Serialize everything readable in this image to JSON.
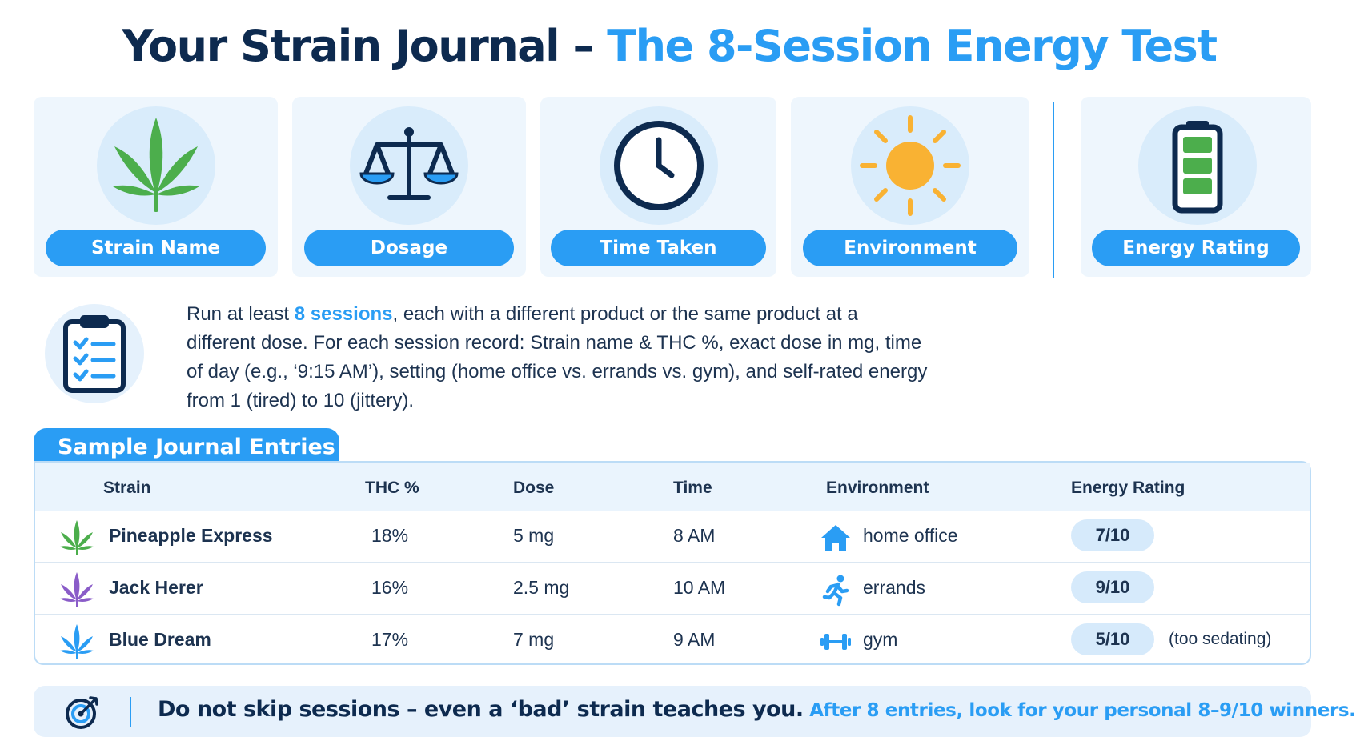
{
  "title": {
    "part1": "Your Strain Journal – ",
    "part2": "The 8-Session Energy Test"
  },
  "cards": [
    {
      "label": "Strain Name",
      "icon": "cannabis-leaf-icon"
    },
    {
      "label": "Dosage",
      "icon": "balance-scale-icon"
    },
    {
      "label": "Time Taken",
      "icon": "clock-icon"
    },
    {
      "label": "Environment",
      "icon": "sun-icon"
    },
    {
      "label": "Energy Rating",
      "icon": "battery-icon"
    }
  ],
  "instructions": {
    "icon": "clipboard-checklist-icon",
    "lead": "Run at least ",
    "highlight": "8 sessions",
    "rest": ", each with a different product or the same product at a different dose. For each session record: Strain name & THC %, exact dose in mg, time of day (e.g., ‘9:15 AM’), setting (home office vs. errands vs. gym), and self-rated energy from 1 (tired) to 10 (jittery)."
  },
  "table": {
    "tab_label": "Sample Journal Entries",
    "headers": {
      "strain": "Strain",
      "thc": "THC %",
      "dose": "Dose",
      "time": "Time",
      "environment": "Environment",
      "energy": "Energy Rating"
    },
    "rows": [
      {
        "strain": "Pineapple Express",
        "leaf_color": "#4cae4c",
        "thc": "18%",
        "dose": "5 mg",
        "time": "8 AM",
        "env_icon": "house-icon",
        "environment": "home office",
        "energy": "7/10",
        "note": ""
      },
      {
        "strain": "Jack Herer",
        "leaf_color": "#8a5cc8",
        "thc": "16%",
        "dose": "2.5 mg",
        "time": "10 AM",
        "env_icon": "running-person-icon",
        "environment": "errands",
        "energy": "9/10",
        "note": ""
      },
      {
        "strain": "Blue Dream",
        "leaf_color": "#2a9df4",
        "thc": "17%",
        "dose": "7 mg",
        "time": "9 AM",
        "env_icon": "dumbbell-icon",
        "environment": "gym",
        "energy": "5/10",
        "note": "(too sedating)"
      }
    ]
  },
  "footer": {
    "icon": "target-icon",
    "text1": "Do not skip sessions – even a ‘bad’ strain teaches you.",
    "text2": " After 8 entries, look for your personal 8–9/10 winners."
  },
  "colors": {
    "navy": "#0d2a4f",
    "accent": "#2a9df4",
    "card_bg": "#eef6fd",
    "sun": "#f9b233",
    "battery": "#4cae4c"
  }
}
